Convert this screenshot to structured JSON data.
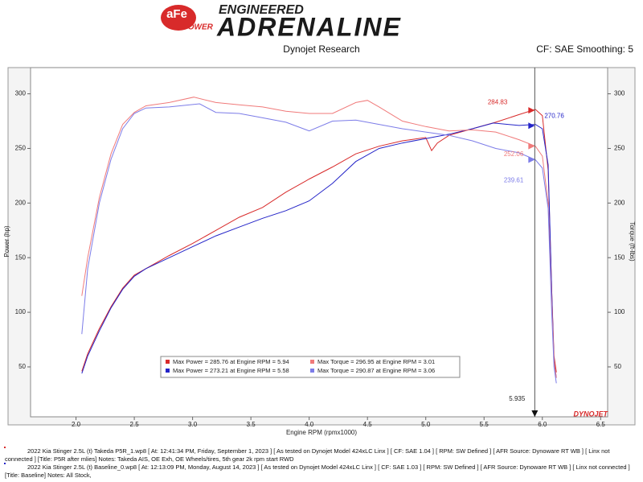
{
  "header": {
    "logo_top": "aFe",
    "logo_bottom": "POWER",
    "tagline_top": "ENGINEERED",
    "tagline": "ADRENALINE"
  },
  "chart_data": {
    "type": "line",
    "title": "Dynojet Research",
    "subtitle": "CF: SAE Smoothing: 5",
    "x_label": "Engine RPM (rpmx1000)",
    "y_label": "Power (hp)",
    "y2_label": "Torque (ft-lbs)",
    "brand": "DYNOJET",
    "xlim": [
      1.61,
      6.56
    ],
    "xticks": [
      {
        "value": 2,
        "label": "2.0"
      },
      2.5,
      {
        "value": 3,
        "label": "3.0"
      },
      3.5,
      {
        "value": 4,
        "label": "4.0"
      },
      4.5,
      {
        "value": 5,
        "label": "5.0"
      },
      5.5,
      {
        "value": 6,
        "label": "6.0"
      },
      6.5
    ],
    "ylim": [
      4.3,
      324
    ],
    "yticks": [
      50,
      100,
      150,
      200,
      250,
      300
    ],
    "y2lim": [
      4.3,
      324
    ],
    "y2ticks": [
      50,
      100,
      150,
      200,
      250,
      300
    ],
    "series": [
      {
        "name": "Max Power = 285.76 at Engine RPM = 5.94",
        "color": "#d82a2a",
        "x": [
          2.05,
          2.1,
          2.2,
          2.3,
          2.4,
          2.5,
          2.6,
          2.8,
          3.0,
          3.2,
          3.4,
          3.6,
          3.8,
          4.0,
          4.2,
          4.4,
          4.6,
          4.8,
          5.0,
          5.05,
          5.1,
          5.2,
          5.4,
          5.6,
          5.8,
          5.94,
          6.0,
          6.05,
          6.08,
          6.1,
          6.12
        ],
        "values": [
          46,
          62,
          85,
          105,
          122,
          134,
          140,
          152,
          163,
          175,
          187,
          196,
          210,
          222,
          233,
          245,
          252,
          257,
          260,
          248,
          255,
          262,
          268,
          274,
          281,
          285.76,
          280,
          230,
          120,
          60,
          45
        ]
      },
      {
        "name": "Max Power = 273.21 at Engine RPM = 5.58",
        "color": "#2424c8",
        "x": [
          2.05,
          2.1,
          2.2,
          2.3,
          2.4,
          2.5,
          2.6,
          2.8,
          3.0,
          3.2,
          3.4,
          3.6,
          3.8,
          4.0,
          4.2,
          4.4,
          4.6,
          4.8,
          5.0,
          5.2,
          5.4,
          5.58,
          5.8,
          5.94,
          6.0,
          6.05,
          6.08,
          6.1,
          6.12
        ],
        "values": [
          44,
          60,
          83,
          104,
          121,
          133,
          140,
          150,
          160,
          170,
          178,
          186,
          193,
          202,
          218,
          238,
          250,
          255,
          259,
          263,
          268,
          273.21,
          271,
          272,
          268,
          235,
          120,
          55,
          40
        ]
      },
      {
        "name": "Max Torque = 296.95 at Engine RPM = 3.01",
        "color": "#f07a7a",
        "axis": "y2",
        "x": [
          2.05,
          2.1,
          2.2,
          2.3,
          2.4,
          2.5,
          2.6,
          2.8,
          3.01,
          3.2,
          3.4,
          3.6,
          3.8,
          4.0,
          4.2,
          4.4,
          4.5,
          4.6,
          4.8,
          5.0,
          5.2,
          5.4,
          5.6,
          5.8,
          5.94,
          6.0,
          6.05,
          6.08,
          6.1,
          6.12
        ],
        "values": [
          115,
          150,
          205,
          245,
          272,
          283,
          289,
          292,
          296.95,
          292,
          290,
          288,
          284,
          282,
          282,
          292,
          294,
          288,
          275,
          270,
          266,
          267,
          265,
          258,
          252.06,
          243,
          200,
          110,
          55,
          40
        ]
      },
      {
        "name": "Max Torque = 290.87 at Engine RPM = 3.06",
        "color": "#7c7ce8",
        "axis": "y2",
        "x": [
          2.05,
          2.1,
          2.2,
          2.3,
          2.4,
          2.5,
          2.6,
          2.8,
          3.06,
          3.2,
          3.4,
          3.6,
          3.8,
          4.0,
          4.2,
          4.4,
          4.6,
          4.8,
          5.0,
          5.2,
          5.4,
          5.6,
          5.8,
          5.94,
          6.0,
          6.05,
          6.08,
          6.1,
          6.12
        ],
        "values": [
          80,
          140,
          200,
          240,
          268,
          282,
          287,
          288,
          290.87,
          283,
          282,
          278,
          274,
          266,
          275,
          276,
          272,
          268,
          265,
          262,
          257,
          250,
          246,
          239.61,
          232,
          195,
          100,
          50,
          35
        ]
      }
    ],
    "cursor": {
      "x": 5.935,
      "readouts": [
        284.83,
        270.76,
        252.06,
        239.61
      ]
    }
  },
  "footer": [
    {
      "lines": [
        "2022 Kia Stinger 2.5L (t) Takeda P5R_1.wp8 [ At: 12:41:34 PM, Friday, September 1, 2023 ] [ As tested on Dynojet Model 424xLC Linx ] [ CF: SAE 1.04 ] [ RPM: SW Defined ] [ AFR Source: Dynoware RT WB ] [ Linx not",
        "connected ] [Title: P5R after mlies]  Notes: Takeda AIS, OE Exh, OE Wheels/tires, 5th gear 2k rpm start RWD"
      ],
      "color": "#d82a2a"
    },
    {
      "lines": [
        "2022 Kia Stinger 2.5L (t) Baseline_0.wp8 [ At: 12:13:09 PM, Monday, August 14, 2023 ] [ As tested on Dynojet Model 424xLC Linx ] [ CF: SAE 1.03 ] [ RPM: SW Defined ] [ AFR Source: Dynoware RT WB ] [ Linx not connected ]",
        "[Title: Baseline]  Notes: All Stock,"
      ],
      "color": "#2424c8"
    }
  ]
}
